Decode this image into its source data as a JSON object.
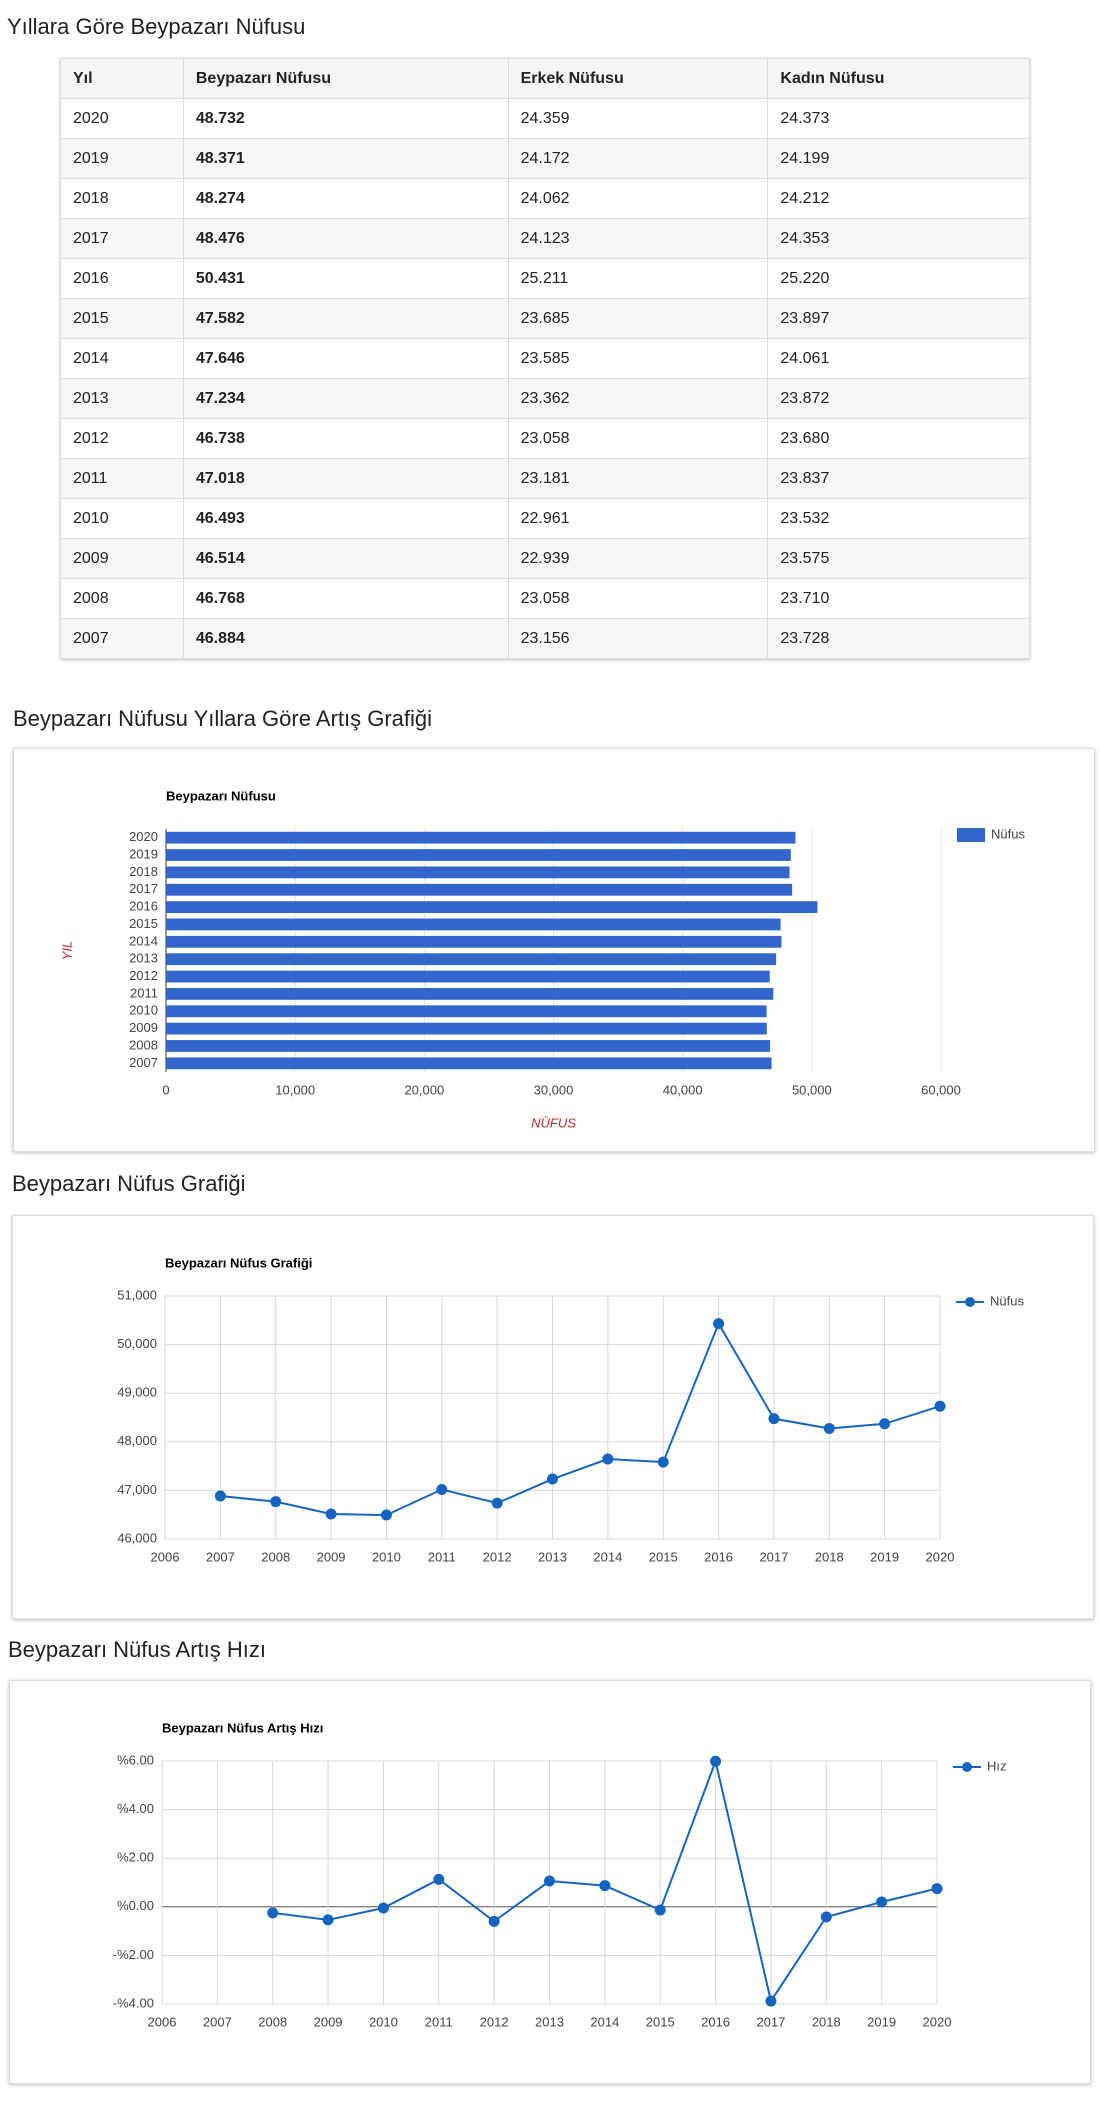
{
  "headings": [
    "Yıllara Göre Beypazarı Nüfusu",
    "Beypazarı Nüfusu Yıllara Göre Artış Grafiği",
    "Beypazarı Nüfus Grafiği",
    "Beypazarı Nüfus Artış Hızı"
  ],
  "table": {
    "header": [
      "Yıl",
      "Beypazarı Nüfusu",
      "Erkek Nüfusu",
      "Kadın Nüfusu"
    ],
    "rows": [
      [
        "2020",
        "48.732",
        "24.359",
        "24.373"
      ],
      [
        "2019",
        "48.371",
        "24.172",
        "24.199"
      ],
      [
        "2018",
        "48.274",
        "24.062",
        "24.212"
      ],
      [
        "2017",
        "48.476",
        "24.123",
        "24.353"
      ],
      [
        "2016",
        "50.431",
        "25.211",
        "25.220"
      ],
      [
        "2015",
        "47.582",
        "23.685",
        "23.897"
      ],
      [
        "2014",
        "47.646",
        "23.585",
        "24.061"
      ],
      [
        "2013",
        "47.234",
        "23.362",
        "23.872"
      ],
      [
        "2012",
        "46.738",
        "23.058",
        "23.680"
      ],
      [
        "2011",
        "47.018",
        "23.181",
        "23.837"
      ],
      [
        "2010",
        "46.493",
        "22.961",
        "23.532"
      ],
      [
        "2009",
        "46.514",
        "22.939",
        "23.575"
      ],
      [
        "2008",
        "46.768",
        "23.058",
        "23.710"
      ],
      [
        "2007",
        "46.884",
        "23.156",
        "23.728"
      ]
    ]
  },
  "chart_data": [
    {
      "type": "bar",
      "orientation": "horizontal",
      "title": "Beypazarı Nüfusu",
      "xlabel": "NÜFUS",
      "ylabel": "YIL",
      "categories": [
        "2020",
        "2019",
        "2018",
        "2017",
        "2016",
        "2015",
        "2014",
        "2013",
        "2012",
        "2011",
        "2010",
        "2009",
        "2008",
        "2007"
      ],
      "series": [
        {
          "name": "Nüfus",
          "color": "#3366cc",
          "values": [
            48732,
            48371,
            48274,
            48476,
            50431,
            47582,
            47646,
            47234,
            46738,
            47018,
            46493,
            46514,
            46768,
            46884
          ]
        }
      ],
      "xlim": [
        0,
        60000
      ],
      "xticks": [
        0,
        {
          "value": 10000,
          "label": "10,000"
        },
        {
          "value": 20000,
          "label": "20,000"
        },
        {
          "value": 30000,
          "label": "30,000"
        },
        {
          "value": 40000,
          "label": "40,000"
        },
        {
          "value": 50000,
          "label": "50,000"
        },
        {
          "value": 60000,
          "label": "60,000"
        }
      ],
      "grid": true,
      "legend": "right"
    },
    {
      "type": "line",
      "title": "Beypazarı Nüfus Grafiği",
      "x": [
        2007,
        2008,
        2009,
        2010,
        2011,
        2012,
        2013,
        2014,
        2015,
        2016,
        2017,
        2018,
        2019,
        2020
      ],
      "series": [
        {
          "name": "Nüfus",
          "color": "#1565c0",
          "values": [
            46884,
            46768,
            46514,
            46493,
            47018,
            46738,
            47234,
            47646,
            47582,
            50431,
            48476,
            48274,
            48371,
            48732
          ]
        }
      ],
      "xlim": [
        2006,
        2020
      ],
      "xticks": [
        2006,
        2007,
        2008,
        2009,
        2010,
        2011,
        2012,
        2013,
        2014,
        2015,
        2016,
        2017,
        2018,
        2019,
        2020
      ],
      "ylim": [
        46000,
        51000
      ],
      "yticks": [
        {
          "value": 46000,
          "label": "46,000"
        },
        {
          "value": 47000,
          "label": "47,000"
        },
        {
          "value": 48000,
          "label": "48,000"
        },
        {
          "value": 49000,
          "label": "49,000"
        },
        {
          "value": 50000,
          "label": "50,000"
        },
        {
          "value": 51000,
          "label": "51,000"
        }
      ],
      "grid": true,
      "legend": "right"
    },
    {
      "type": "line",
      "title": "Beypazarı Nüfus Artış Hızı",
      "x": [
        2008,
        2009,
        2010,
        2011,
        2012,
        2013,
        2014,
        2015,
        2016,
        2017,
        2018,
        2019,
        2020
      ],
      "series": [
        {
          "name": "Hız",
          "color": "#1565c0",
          "values": [
            -0.25,
            -0.54,
            -0.05,
            1.13,
            -0.6,
            1.06,
            0.87,
            -0.13,
            5.99,
            -3.88,
            -0.42,
            0.2,
            0.75
          ]
        }
      ],
      "xlim": [
        2006,
        2020
      ],
      "xticks": [
        2006,
        2007,
        2008,
        2009,
        2010,
        2011,
        2012,
        2013,
        2014,
        2015,
        2016,
        2017,
        2018,
        2019,
        2020
      ],
      "ylim": [
        -4,
        6
      ],
      "yticks": [
        {
          "value": -4,
          "label": "-%4.00"
        },
        {
          "value": -2,
          "label": "-%2.00"
        },
        {
          "value": 0,
          "label": "%0.00"
        },
        {
          "value": 2,
          "label": "%2.00"
        },
        {
          "value": 4,
          "label": "%4.00"
        },
        {
          "value": 6,
          "label": "%6.00"
        }
      ],
      "grid": true,
      "legend": "right"
    }
  ]
}
